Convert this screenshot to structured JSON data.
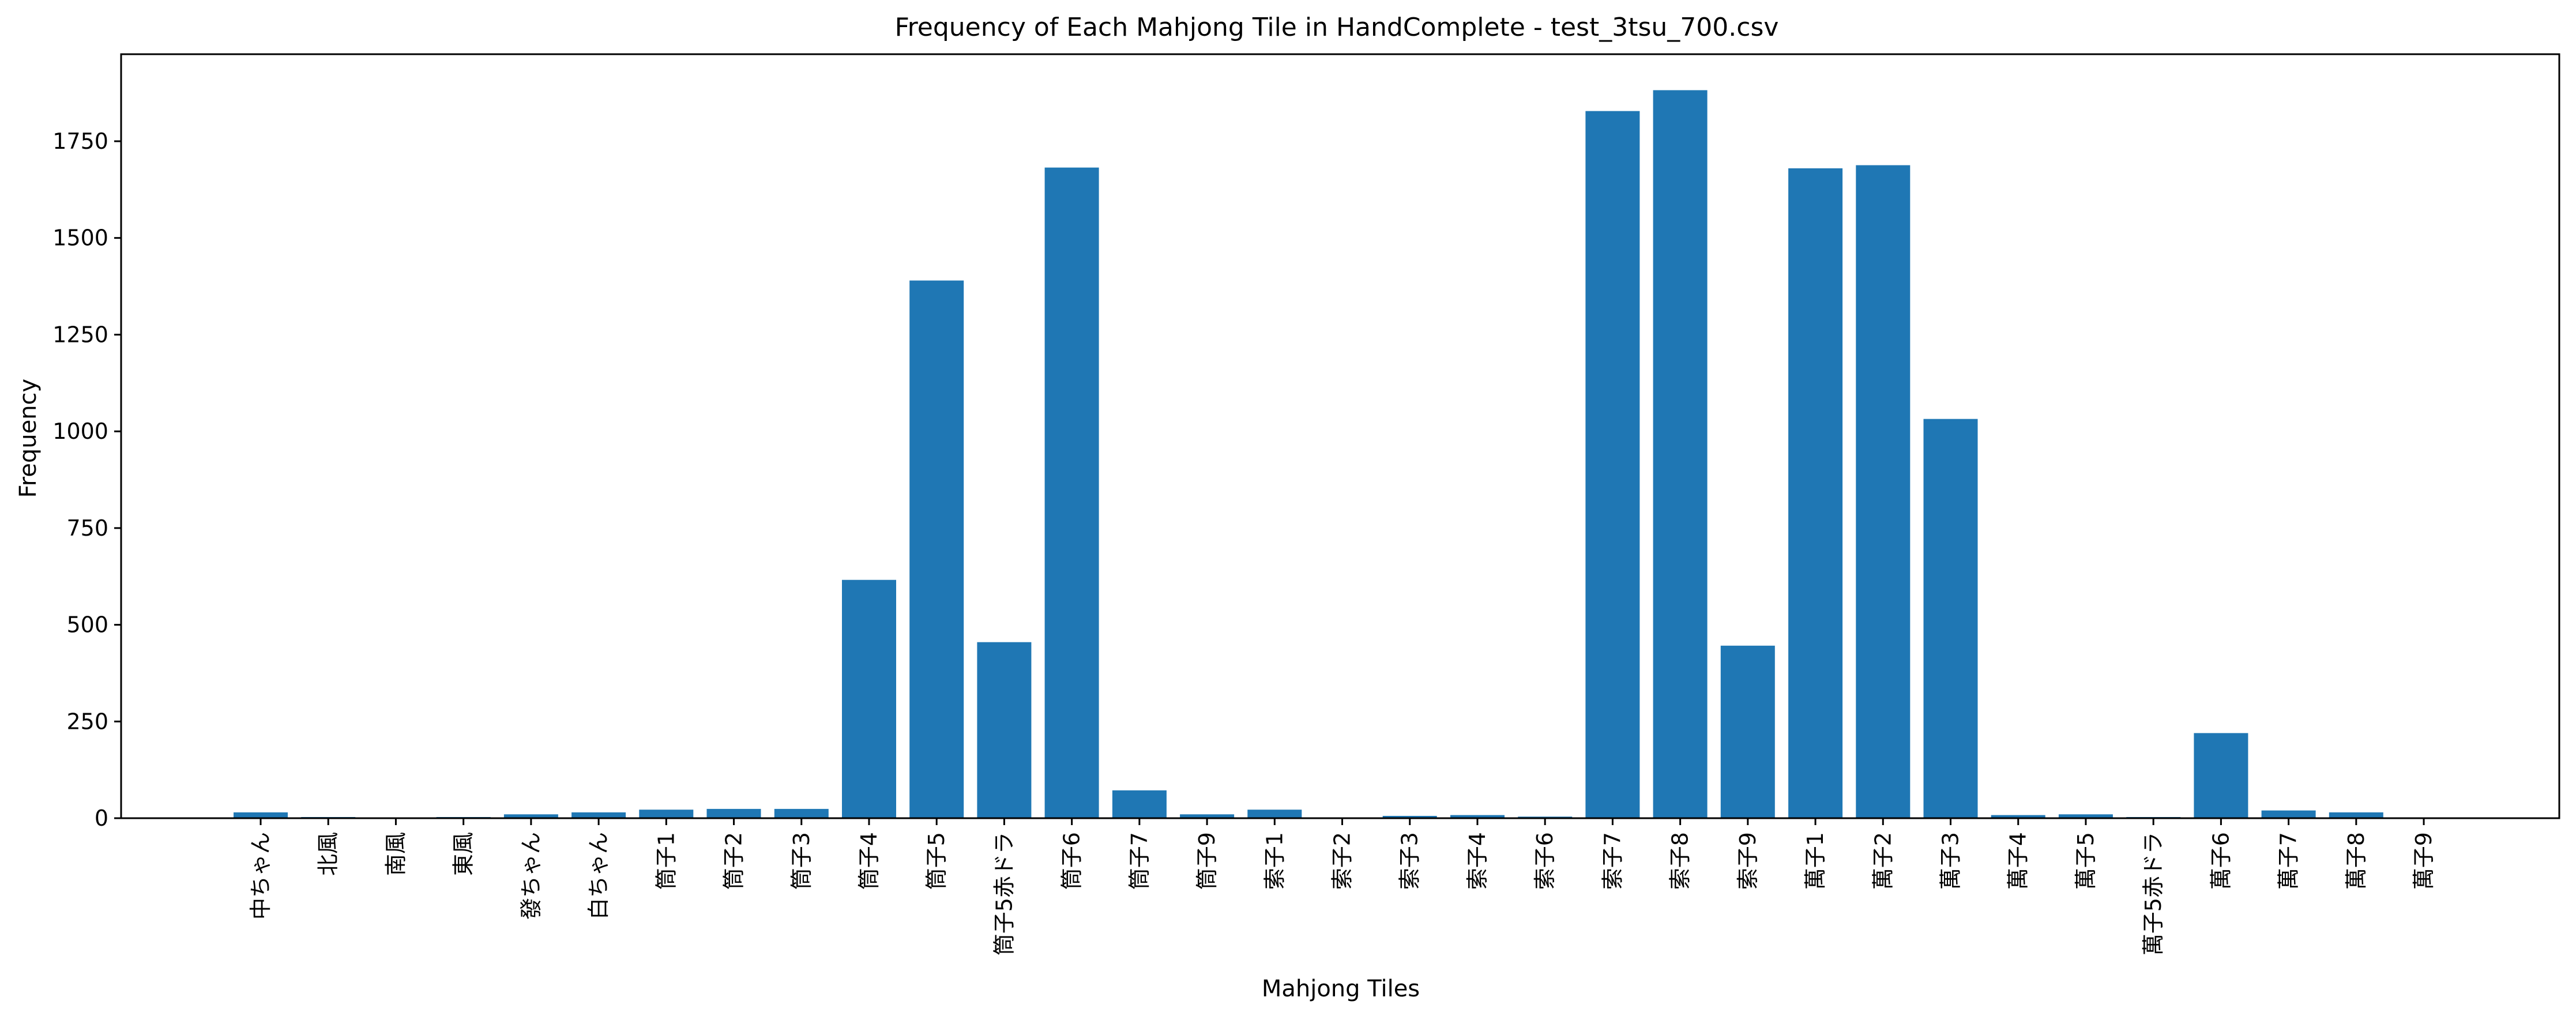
{
  "chart_data": {
    "type": "bar",
    "title": "Frequency of Each Mahjong Tile in HandComplete - test_3tsu_700.csv",
    "xlabel": "Mahjong Tiles",
    "ylabel": "Frequency",
    "ylim": [
      0,
      1975
    ],
    "yticks": [
      0,
      250,
      500,
      750,
      1000,
      1250,
      1500,
      1750
    ],
    "grid": false,
    "bar_color": "#1f77b4",
    "categories": [
      "中ちゃん",
      "北風",
      "南風",
      "東風",
      "發ちゃん",
      "白ちゃん",
      "筒子1",
      "筒子2",
      "筒子3",
      "筒子4",
      "筒子5",
      "筒子5赤ドラ",
      "筒子6",
      "筒子7",
      "筒子9",
      "索子1",
      "索子2",
      "索子3",
      "索子4",
      "索子6",
      "索子7",
      "索子8",
      "索子9",
      "萬子1",
      "萬子2",
      "萬子3",
      "萬子4",
      "萬子5",
      "萬子5赤ドラ",
      "萬子6",
      "萬子7",
      "萬子8",
      "萬子9"
    ],
    "values": [
      15,
      3,
      0,
      3,
      10,
      15,
      22,
      24,
      24,
      616,
      1390,
      455,
      1682,
      72,
      10,
      22,
      0,
      6,
      8,
      4,
      1828,
      1882,
      446,
      1680,
      1688,
      1032,
      8,
      10,
      3,
      220,
      20,
      15,
      0
    ]
  }
}
